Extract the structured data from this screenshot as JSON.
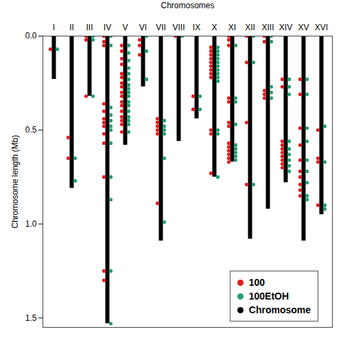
{
  "chart_data": {
    "type": "scatter",
    "x_label": "Chromosomes",
    "y_label": "Chromosome length (Mb)",
    "categories": [
      "I",
      "II",
      "III",
      "IV",
      "V",
      "VI",
      "VII",
      "VIII",
      "IX",
      "X",
      "XI",
      "XII",
      "XIII",
      "XIV",
      "XV",
      "XVI"
    ],
    "ylim": [
      0,
      1.55
    ],
    "yticks": [
      0,
      0.5,
      1,
      1.5
    ],
    "legend": "bottom-right",
    "series": [
      {
        "name": "100",
        "color": "#e41a1c",
        "marker": "circle",
        "x": [
          "I",
          "II",
          "II",
          "III",
          "III",
          "III",
          "IV",
          "IV",
          "IV",
          "IV",
          "IV",
          "IV",
          "IV",
          "IV",
          "IV",
          "IV",
          "IV",
          "IV",
          "IV",
          "V",
          "V",
          "V",
          "V",
          "V",
          "V",
          "V",
          "V",
          "V",
          "V",
          "V",
          "V",
          "V",
          "V",
          "V",
          "V",
          "V",
          "VI",
          "VI",
          "VI",
          "VII",
          "VII",
          "VII",
          "VII",
          "VII",
          "VII",
          "VIII",
          "IX",
          "IX",
          "X",
          "X",
          "X",
          "X",
          "X",
          "X",
          "X",
          "X",
          "X",
          "X",
          "X",
          "X",
          "XI",
          "XI",
          "XI",
          "XI",
          "XI",
          "XI",
          "XI",
          "XI",
          "XI",
          "XI",
          "XI",
          "XI",
          "XI",
          "XII",
          "XII",
          "XII",
          "XII",
          "XIII",
          "XIII",
          "XIII",
          "XIII",
          "XIII",
          "XIV",
          "XIV",
          "XIV",
          "XIV",
          "XIV",
          "XIV",
          "XIV",
          "XIV",
          "XIV",
          "XIV",
          "XV",
          "XV",
          "XV",
          "XV",
          "XV",
          "XV",
          "XV",
          "XV",
          "XV",
          "XV",
          "XVI",
          "XVI",
          "XVI",
          "XVI"
        ],
        "values": [
          0.07,
          0.54,
          0.65,
          0.0,
          0.02,
          0.32,
          0.0,
          0.03,
          0.05,
          0.36,
          0.4,
          0.44,
          0.46,
          0.48,
          0.52,
          0.57,
          0.75,
          1.25,
          1.3,
          0.05,
          0.08,
          0.12,
          0.15,
          0.2,
          0.22,
          0.25,
          0.27,
          0.3,
          0.32,
          0.35,
          0.37,
          0.4,
          0.43,
          0.45,
          0.47,
          0.51,
          0.02,
          0.05,
          0.1,
          0.44,
          0.46,
          0.48,
          0.5,
          0.52,
          0.89,
          0.0,
          0.32,
          0.39,
          0.06,
          0.08,
          0.1,
          0.12,
          0.14,
          0.16,
          0.18,
          0.2,
          0.22,
          0.5,
          0.52,
          0.73,
          0.0,
          0.02,
          0.05,
          0.33,
          0.35,
          0.46,
          0.48,
          0.57,
          0.59,
          0.61,
          0.63,
          0.65,
          0.67,
          0.0,
          0.14,
          0.46,
          0.79,
          0.0,
          0.03,
          0.29,
          0.31,
          0.33,
          0.23,
          0.27,
          0.56,
          0.58,
          0.6,
          0.62,
          0.64,
          0.66,
          0.68,
          0.7,
          0.23,
          0.31,
          0.49,
          0.58,
          0.66,
          0.72,
          0.75,
          0.79,
          0.82,
          0.85,
          0.5,
          0.65,
          0.67,
          0.9
        ]
      },
      {
        "name": "100EtOH",
        "color": "#1f9e6e",
        "marker": "circle",
        "x": [
          "I",
          "II",
          "II",
          "III",
          "III",
          "III",
          "IV",
          "IV",
          "IV",
          "IV",
          "IV",
          "IV",
          "IV",
          "IV",
          "IV",
          "IV",
          "IV",
          "IV",
          "V",
          "V",
          "V",
          "V",
          "V",
          "V",
          "V",
          "V",
          "V",
          "V",
          "V",
          "V",
          "V",
          "V",
          "V",
          "V",
          "V",
          "VI",
          "VI",
          "VI",
          "VII",
          "VII",
          "VII",
          "VII",
          "VII",
          "VII",
          "VIII",
          "IX",
          "IX",
          "X",
          "X",
          "X",
          "X",
          "X",
          "X",
          "X",
          "X",
          "X",
          "X",
          "X",
          "X",
          "X",
          "XI",
          "XI",
          "XI",
          "XI",
          "XI",
          "XI",
          "XI",
          "XI",
          "XI",
          "XII",
          "XII",
          "XII",
          "XIII",
          "XIII",
          "XIII",
          "XIII",
          "XIII",
          "XIV",
          "XIV",
          "XIV",
          "XIV",
          "XIV",
          "XIV",
          "XIV",
          "XIV",
          "XIV",
          "XV",
          "XV",
          "XV",
          "XV",
          "XV",
          "XV",
          "XV",
          "XV",
          "XV",
          "XVI",
          "XVI",
          "XVI",
          "XVI"
        ],
        "values": [
          0.07,
          0.65,
          0.77,
          0.0,
          0.02,
          0.32,
          0.0,
          0.05,
          0.38,
          0.42,
          0.45,
          0.48,
          0.5,
          0.57,
          0.75,
          0.87,
          1.25,
          1.53,
          0.05,
          0.09,
          0.13,
          0.17,
          0.2,
          0.23,
          0.26,
          0.28,
          0.3,
          0.32,
          0.35,
          0.37,
          0.4,
          0.43,
          0.45,
          0.47,
          0.51,
          0.0,
          0.08,
          0.23,
          0.45,
          0.48,
          0.5,
          0.52,
          0.65,
          0.99,
          0.0,
          0.32,
          0.39,
          0.06,
          0.08,
          0.1,
          0.12,
          0.14,
          0.16,
          0.18,
          0.2,
          0.22,
          0.24,
          0.5,
          0.52,
          0.75,
          0.05,
          0.33,
          0.35,
          0.47,
          0.58,
          0.6,
          0.62,
          0.64,
          0.66,
          0.0,
          0.14,
          0.79,
          0.0,
          0.03,
          0.27,
          0.3,
          0.33,
          0.23,
          0.27,
          0.31,
          0.56,
          0.6,
          0.63,
          0.66,
          0.69,
          0.72,
          0.23,
          0.31,
          0.49,
          0.56,
          0.66,
          0.72,
          0.78,
          0.85,
          0.87,
          0.48,
          0.67,
          0.9,
          0.92
        ]
      },
      {
        "name": "Chromosome",
        "color": "#000000",
        "type": "bar",
        "x": [
          "I",
          "II",
          "III",
          "IV",
          "V",
          "VI",
          "VII",
          "VIII",
          "IX",
          "X",
          "XI",
          "XII",
          "XIII",
          "XIV",
          "XV",
          "XVI"
        ],
        "values": [
          0.23,
          0.81,
          0.32,
          1.53,
          0.58,
          0.27,
          1.09,
          0.56,
          0.44,
          0.75,
          0.67,
          1.08,
          0.92,
          0.78,
          1.09,
          0.95
        ]
      }
    ]
  }
}
